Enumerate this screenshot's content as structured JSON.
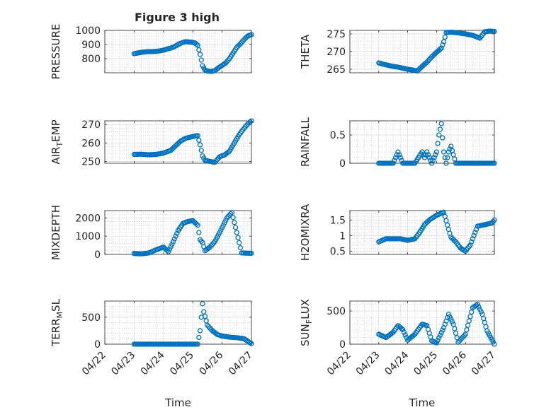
{
  "figure": {
    "title": "Figure 3 high",
    "marker_color": "#0072BD",
    "axes_color": "#262626",
    "grid_color": "#b0b0b0"
  },
  "chart_data": [
    {
      "type": "scatter",
      "ylabel": "PRESSURE",
      "xlim": [
        "04/22",
        "04/27"
      ],
      "ylim": [
        700,
        1000
      ],
      "yticks": [
        "800",
        "900",
        "1000"
      ],
      "xticks": [
        "04/22",
        "04/23",
        "04/24",
        "04/25",
        "04/26",
        "04/27"
      ],
      "grid": true,
      "points": [
        {
          "x": "04/23 00:00",
          "y": 835
        },
        {
          "x": "04/23 03:00",
          "y": 840
        },
        {
          "x": "04/23 06:00",
          "y": 845
        },
        {
          "x": "04/23 09:00",
          "y": 848
        },
        {
          "x": "04/23 12:00",
          "y": 850
        },
        {
          "x": "04/23 15:00",
          "y": 850
        },
        {
          "x": "04/23 18:00",
          "y": 852
        },
        {
          "x": "04/23 21:00",
          "y": 855
        },
        {
          "x": "04/24 00:00",
          "y": 860
        },
        {
          "x": "04/24 03:00",
          "y": 868
        },
        {
          "x": "04/24 06:00",
          "y": 875
        },
        {
          "x": "04/24 09:00",
          "y": 885
        },
        {
          "x": "04/24 12:00",
          "y": 900
        },
        {
          "x": "04/24 15:00",
          "y": 912
        },
        {
          "x": "04/24 18:00",
          "y": 920
        },
        {
          "x": "04/24 21:00",
          "y": 918
        },
        {
          "x": "04/25 00:00",
          "y": 915
        },
        {
          "x": "04/25 02:00",
          "y": 910
        },
        {
          "x": "04/25 04:00",
          "y": 895
        },
        {
          "x": "04/25 06:00",
          "y": 830
        },
        {
          "x": "04/25 08:00",
          "y": 750
        },
        {
          "x": "04/25 10:00",
          "y": 720
        },
        {
          "x": "04/25 12:00",
          "y": 712
        },
        {
          "x": "04/25 15:00",
          "y": 710
        },
        {
          "x": "04/25 18:00",
          "y": 715
        },
        {
          "x": "04/25 21:00",
          "y": 735
        },
        {
          "x": "04/26 00:00",
          "y": 752
        },
        {
          "x": "04/26 03:00",
          "y": 770
        },
        {
          "x": "04/26 06:00",
          "y": 800
        },
        {
          "x": "04/26 09:00",
          "y": 840
        },
        {
          "x": "04/26 12:00",
          "y": 880
        },
        {
          "x": "04/26 15:00",
          "y": 905
        },
        {
          "x": "04/26 18:00",
          "y": 935
        },
        {
          "x": "04/26 21:00",
          "y": 960
        },
        {
          "x": "04/27 00:00",
          "y": 970
        }
      ]
    },
    {
      "type": "scatter",
      "ylabel": "THETA",
      "xlim": [
        "04/22",
        "04/27"
      ],
      "ylim": [
        264,
        276
      ],
      "yticks": [
        "265",
        "270",
        "275"
      ],
      "xticks": [
        "04/22",
        "04/23",
        "04/24",
        "04/25",
        "04/26",
        "04/27"
      ],
      "grid": true,
      "points": [
        {
          "x": "04/23 00:00",
          "y": 266.8
        },
        {
          "x": "04/23 04:00",
          "y": 266.4
        },
        {
          "x": "04/23 08:00",
          "y": 266.1
        },
        {
          "x": "04/23 12:00",
          "y": 265.8
        },
        {
          "x": "04/23 16:00",
          "y": 265.6
        },
        {
          "x": "04/23 20:00",
          "y": 265.3
        },
        {
          "x": "04/24 00:00",
          "y": 265.0
        },
        {
          "x": "04/24 04:00",
          "y": 264.8
        },
        {
          "x": "04/24 08:00",
          "y": 264.5
        },
        {
          "x": "04/24 12:00",
          "y": 265.8
        },
        {
          "x": "04/24 16:00",
          "y": 267.0
        },
        {
          "x": "04/24 20:00",
          "y": 268.5
        },
        {
          "x": "04/25 00:00",
          "y": 269.8
        },
        {
          "x": "04/25 04:00",
          "y": 271.0
        },
        {
          "x": "04/25 06:00",
          "y": 272.8
        },
        {
          "x": "04/25 08:00",
          "y": 275.4
        },
        {
          "x": "04/25 12:00",
          "y": 275.5
        },
        {
          "x": "04/25 18:00",
          "y": 275.3
        },
        {
          "x": "04/26 00:00",
          "y": 275.0
        },
        {
          "x": "04/26 06:00",
          "y": 274.6
        },
        {
          "x": "04/26 12:00",
          "y": 273.8
        },
        {
          "x": "04/26 16:00",
          "y": 275.6
        },
        {
          "x": "04/26 20:00",
          "y": 275.8
        },
        {
          "x": "04/27 00:00",
          "y": 275.7
        }
      ]
    },
    {
      "type": "scatter",
      "ylabel": "AIR",
      "ylabel_sub": "T",
      "ylabel_rest": "EMP",
      "xlim": [
        "04/22",
        "04/27"
      ],
      "ylim": [
        249,
        272
      ],
      "yticks": [
        "250",
        "260",
        "270"
      ],
      "xticks": [
        "04/22",
        "04/23",
        "04/24",
        "04/25",
        "04/26",
        "04/27"
      ],
      "grid": true,
      "points": [
        {
          "x": "04/23 00:00",
          "y": 253.8
        },
        {
          "x": "04/23 06:00",
          "y": 253.9
        },
        {
          "x": "04/23 12:00",
          "y": 253.6
        },
        {
          "x": "04/23 18:00",
          "y": 253.8
        },
        {
          "x": "04/24 00:00",
          "y": 254.5
        },
        {
          "x": "04/24 06:00",
          "y": 256.0
        },
        {
          "x": "04/24 10:00",
          "y": 258.5
        },
        {
          "x": "04/24 14:00",
          "y": 261.0
        },
        {
          "x": "04/24 18:00",
          "y": 262.5
        },
        {
          "x": "04/25 00:00",
          "y": 263.5
        },
        {
          "x": "04/25 04:00",
          "y": 264.0
        },
        {
          "x": "04/25 06:00",
          "y": 259.0
        },
        {
          "x": "04/25 08:00",
          "y": 253.0
        },
        {
          "x": "04/25 10:00",
          "y": 250.5
        },
        {
          "x": "04/25 14:00",
          "y": 250.0
        },
        {
          "x": "04/25 18:00",
          "y": 249.5
        },
        {
          "x": "04/25 22:00",
          "y": 252.5
        },
        {
          "x": "04/26 02:00",
          "y": 253.5
        },
        {
          "x": "04/26 06:00",
          "y": 255.5
        },
        {
          "x": "04/26 10:00",
          "y": 260.0
        },
        {
          "x": "04/26 14:00",
          "y": 264.5
        },
        {
          "x": "04/26 18:00",
          "y": 268.0
        },
        {
          "x": "04/26 22:00",
          "y": 271.0
        },
        {
          "x": "04/27 00:00",
          "y": 272.0
        }
      ]
    },
    {
      "type": "scatter",
      "ylabel": "RAINFALL",
      "xlim": [
        "04/22",
        "04/27"
      ],
      "ylim": [
        0,
        0.75
      ],
      "yticks": [
        "0",
        "0.5"
      ],
      "xticks": [
        "04/22",
        "04/23",
        "04/24",
        "04/25",
        "04/26",
        "04/27"
      ],
      "grid": true,
      "points": [
        {
          "x": "04/23 00:00",
          "y": 0
        },
        {
          "x": "04/23 06:00",
          "y": 0
        },
        {
          "x": "04/23 12:00",
          "y": 0
        },
        {
          "x": "04/23 16:00",
          "y": 0.2
        },
        {
          "x": "04/23 20:00",
          "y": 0
        },
        {
          "x": "04/24 00:00",
          "y": 0
        },
        {
          "x": "04/24 06:00",
          "y": 0
        },
        {
          "x": "04/24 12:00",
          "y": 0.2
        },
        {
          "x": "04/24 14:00",
          "y": 0.1
        },
        {
          "x": "04/24 16:00",
          "y": 0.2
        },
        {
          "x": "04/24 20:00",
          "y": 0
        },
        {
          "x": "04/25 00:00",
          "y": 0.2
        },
        {
          "x": "04/25 02:00",
          "y": 0.5
        },
        {
          "x": "04/25 04:00",
          "y": 0.7
        },
        {
          "x": "04/25 06:00",
          "y": 0.2
        },
        {
          "x": "04/25 08:00",
          "y": 0
        },
        {
          "x": "04/25 10:00",
          "y": 0.2
        },
        {
          "x": "04/25 12:00",
          "y": 0.3
        },
        {
          "x": "04/25 16:00",
          "y": 0
        },
        {
          "x": "04/26 00:00",
          "y": 0
        },
        {
          "x": "04/26 12:00",
          "y": 0
        },
        {
          "x": "04/27 00:00",
          "y": 0
        }
      ]
    },
    {
      "type": "scatter",
      "ylabel": "MIXDEPTH",
      "xlim": [
        "04/22",
        "04/27"
      ],
      "ylim": [
        0,
        2400
      ],
      "yticks": [
        "0",
        "1000",
        "2000"
      ],
      "xticks": [
        "04/22",
        "04/23",
        "04/24",
        "04/25",
        "04/26",
        "04/27"
      ],
      "grid": true,
      "points": [
        {
          "x": "04/23 00:00",
          "y": 50
        },
        {
          "x": "04/23 06:00",
          "y": 30
        },
        {
          "x": "04/23 12:00",
          "y": 80
        },
        {
          "x": "04/23 18:00",
          "y": 250
        },
        {
          "x": "04/24 00:00",
          "y": 400
        },
        {
          "x": "04/24 04:00",
          "y": 150
        },
        {
          "x": "04/24 08:00",
          "y": 700
        },
        {
          "x": "04/24 12:00",
          "y": 1300
        },
        {
          "x": "04/24 16:00",
          "y": 1700
        },
        {
          "x": "04/24 20:00",
          "y": 1800
        },
        {
          "x": "04/25 00:00",
          "y": 1850
        },
        {
          "x": "04/25 04:00",
          "y": 1600
        },
        {
          "x": "04/25 06:00",
          "y": 800
        },
        {
          "x": "04/25 08:00",
          "y": 650
        },
        {
          "x": "04/25 10:00",
          "y": 200
        },
        {
          "x": "04/25 14:00",
          "y": 400
        },
        {
          "x": "04/25 18:00",
          "y": 700
        },
        {
          "x": "04/25 22:00",
          "y": 1200
        },
        {
          "x": "04/26 04:00",
          "y": 2000
        },
        {
          "x": "04/26 08:00",
          "y": 2300
        },
        {
          "x": "04/26 12:00",
          "y": 1200
        },
        {
          "x": "04/26 16:00",
          "y": 80
        },
        {
          "x": "04/27 00:00",
          "y": 60
        }
      ]
    },
    {
      "type": "scatter",
      "ylabel": "H2OMIXRA",
      "xlim": [
        "04/22",
        "04/27"
      ],
      "ylim": [
        0.4,
        1.8
      ],
      "yticks": [
        "0.5",
        "1",
        "1.5"
      ],
      "xticks": [
        "04/22",
        "04/23",
        "04/24",
        "04/25",
        "04/26",
        "04/27"
      ],
      "grid": true,
      "points": [
        {
          "x": "04/23 00:00",
          "y": 0.8
        },
        {
          "x": "04/23 06:00",
          "y": 0.9
        },
        {
          "x": "04/23 12:00",
          "y": 0.9
        },
        {
          "x": "04/23 18:00",
          "y": 0.9
        },
        {
          "x": "04/24 00:00",
          "y": 0.85
        },
        {
          "x": "04/24 06:00",
          "y": 0.9
        },
        {
          "x": "04/24 10:00",
          "y": 1.1
        },
        {
          "x": "04/24 14:00",
          "y": 1.35
        },
        {
          "x": "04/24 18:00",
          "y": 1.5
        },
        {
          "x": "04/25 00:00",
          "y": 1.65
        },
        {
          "x": "04/25 06:00",
          "y": 1.75
        },
        {
          "x": "04/25 10:00",
          "y": 1.2
        },
        {
          "x": "04/25 12:00",
          "y": 0.95
        },
        {
          "x": "04/25 16:00",
          "y": 0.8
        },
        {
          "x": "04/25 20:00",
          "y": 0.6
        },
        {
          "x": "04/26 00:00",
          "y": 0.5
        },
        {
          "x": "04/26 04:00",
          "y": 0.7
        },
        {
          "x": "04/26 10:00",
          "y": 1.3
        },
        {
          "x": "04/26 16:00",
          "y": 1.35
        },
        {
          "x": "04/26 22:00",
          "y": 1.4
        },
        {
          "x": "04/27 00:00",
          "y": 1.5
        }
      ]
    },
    {
      "type": "scatter",
      "ylabel": "TERR",
      "ylabel_sub": "M",
      "ylabel_rest": "SL",
      "xlim": [
        "04/22",
        "04/27"
      ],
      "ylim": [
        0,
        800
      ],
      "yticks": [
        "0",
        "500"
      ],
      "xticks": [
        "04/22",
        "04/23",
        "04/24",
        "04/25",
        "04/26",
        "04/27"
      ],
      "xlabel": "Time",
      "grid": true,
      "points": [
        {
          "x": "04/23 00:00",
          "y": 0
        },
        {
          "x": "04/23 12:00",
          "y": 0
        },
        {
          "x": "04/24 00:00",
          "y": 0
        },
        {
          "x": "04/24 12:00",
          "y": 0
        },
        {
          "x": "04/25 00:00",
          "y": 0
        },
        {
          "x": "04/25 04:00",
          "y": 0
        },
        {
          "x": "04/25 06:00",
          "y": 250
        },
        {
          "x": "04/25 07:00",
          "y": 500
        },
        {
          "x": "04/25 08:00",
          "y": 750
        },
        {
          "x": "04/25 09:00",
          "y": 600
        },
        {
          "x": "04/25 12:00",
          "y": 350
        },
        {
          "x": "04/25 16:00",
          "y": 250
        },
        {
          "x": "04/25 20:00",
          "y": 180
        },
        {
          "x": "04/26 00:00",
          "y": 150
        },
        {
          "x": "04/26 06:00",
          "y": 130
        },
        {
          "x": "04/26 12:00",
          "y": 120
        },
        {
          "x": "04/26 18:00",
          "y": 100
        },
        {
          "x": "04/27 00:00",
          "y": 10
        }
      ]
    },
    {
      "type": "scatter",
      "ylabel": "SUN",
      "ylabel_sub": "F",
      "ylabel_rest": "LUX",
      "xlim": [
        "04/22",
        "04/27"
      ],
      "ylim": [
        0,
        650
      ],
      "yticks": [
        "0",
        "500"
      ],
      "xticks": [
        "04/22",
        "04/23",
        "04/24",
        "04/25",
        "04/26",
        "04/27"
      ],
      "xlabel": "Time",
      "grid": true,
      "points": [
        {
          "x": "04/23 00:00",
          "y": 150
        },
        {
          "x": "04/23 06:00",
          "y": 100
        },
        {
          "x": "04/23 12:00",
          "y": 180
        },
        {
          "x": "04/23 16:00",
          "y": 280
        },
        {
          "x": "04/23 20:00",
          "y": 220
        },
        {
          "x": "04/24 00:00",
          "y": 60
        },
        {
          "x": "04/24 06:00",
          "y": 150
        },
        {
          "x": "04/24 12:00",
          "y": 300
        },
        {
          "x": "04/24 16:00",
          "y": 280
        },
        {
          "x": "04/24 20:00",
          "y": 50
        },
        {
          "x": "04/25 00:00",
          "y": 20
        },
        {
          "x": "04/25 06:00",
          "y": 250
        },
        {
          "x": "04/25 10:00",
          "y": 450
        },
        {
          "x": "04/25 14:00",
          "y": 300
        },
        {
          "x": "04/25 18:00",
          "y": 30
        },
        {
          "x": "04/26 00:00",
          "y": 150
        },
        {
          "x": "04/26 06:00",
          "y": 550
        },
        {
          "x": "04/26 10:00",
          "y": 600
        },
        {
          "x": "04/26 14:00",
          "y": 450
        },
        {
          "x": "04/26 18:00",
          "y": 200
        },
        {
          "x": "04/27 00:00",
          "y": 0
        }
      ]
    }
  ]
}
